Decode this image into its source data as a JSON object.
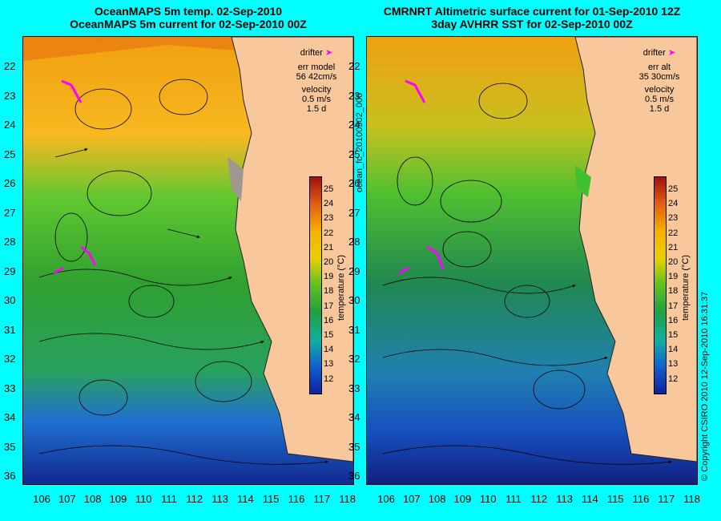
{
  "left_panel": {
    "title_line1": "OceanMAPS 5m temp. 02-Sep-2010",
    "title_line2": "OceanMAPS 5m current for 02-Sep-2010 00Z",
    "legend": {
      "drifter": "drifter",
      "err": "err model",
      "err_value": "56 42cm/s",
      "velocity": "velocity",
      "speed": "0.5 m/s",
      "duration": "1.5 d"
    }
  },
  "right_panel": {
    "title_line1": "CMRNRT Altimetric surface current for 01-Sep-2010 12Z",
    "title_line2": "3day AVHRR SST for 02-Sep-2010 00Z",
    "legend": {
      "drifter": "drifter",
      "err": "err alt",
      "err_value": "35 30cm/s",
      "velocity": "velocity",
      "speed": "0.5 m/s",
      "duration": "1.5 d"
    }
  },
  "axes": {
    "lat_labels": [
      "22",
      "23",
      "24",
      "25",
      "26",
      "27",
      "28",
      "29",
      "30",
      "31",
      "32",
      "33",
      "34",
      "35",
      "36"
    ],
    "lon_labels": [
      "106",
      "107",
      "108",
      "109",
      "110",
      "111",
      "112",
      "113",
      "114",
      "115",
      "116",
      "117",
      "118"
    ]
  },
  "colorbar": {
    "title": "temperature (°C)",
    "ticks": [
      "25",
      "24",
      "23",
      "22",
      "21",
      "20",
      "19",
      "18",
      "17",
      "16",
      "15",
      "14",
      "13",
      "12"
    ]
  },
  "side_text": {
    "product_id": "ocean_fc_20100902_000",
    "copyright": "© Copyright CSIRO 2010   12-Sep-2010 16:31:37"
  },
  "colors": {
    "background": "#00ffff",
    "land": "#f8c89c",
    "warm": "#e87800",
    "mid": "#40c020",
    "cool": "#2080c0",
    "cold": "#1020a0",
    "drifter": "#ff00ff"
  }
}
